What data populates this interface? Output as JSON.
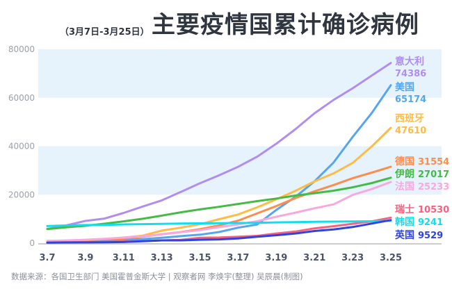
{
  "chart_data": {
    "type": "line",
    "title": "主要疫情国累计确诊病例",
    "subtitle": "（3月7日-3月25日）",
    "source": "数据来源：各国卫生部门 美国霍普金斯大学  |  观察者网 李焕宇(整理)  吴辰晨(制图)",
    "xlabel": "",
    "ylabel": "",
    "ylim": [
      0,
      80000
    ],
    "yticks": [
      "0",
      "20000",
      "40000",
      "60000",
      "80000"
    ],
    "yticks_values": [
      0,
      20000,
      40000,
      60000,
      80000
    ],
    "x": [
      "3.7",
      "3.8",
      "3.9",
      "3.10",
      "3.11",
      "3.12",
      "3.13",
      "3.14",
      "3.15",
      "3.16",
      "3.17",
      "3.18",
      "3.19",
      "3.20",
      "3.21",
      "3.22",
      "3.23",
      "3.24",
      "3.25"
    ],
    "xticks": [
      "3.7",
      "3.9",
      "3.11",
      "3.13",
      "3.15",
      "3.17",
      "3.19",
      "3.21",
      "3.23",
      "3.25"
    ],
    "series": [
      {
        "name": "意大利",
        "final": "74386",
        "color": "#b08ef0",
        "values": [
          5883,
          7375,
          9172,
          10149,
          12462,
          15113,
          17660,
          21157,
          24747,
          27980,
          31506,
          35713,
          41035,
          47021,
          53578,
          59138,
          63927,
          69176,
          74386
        ]
      },
      {
        "name": "美国",
        "final": "65174",
        "color": "#55a6f0",
        "values": [
          400,
          500,
          600,
          900,
          1300,
          1700,
          2200,
          2900,
          3500,
          4600,
          6400,
          7700,
          13700,
          19100,
          25500,
          33300,
          43800,
          53700,
          65174
        ]
      },
      {
        "name": "西班牙",
        "final": "47610",
        "color": "#ffbb44",
        "values": [
          500,
          670,
          1200,
          1700,
          2300,
          3100,
          5200,
          6400,
          7800,
          9900,
          11800,
          14800,
          18100,
          21600,
          25500,
          28800,
          33100,
          39900,
          47610
        ]
      },
      {
        "name": "德国",
        "final": "31554",
        "color": "#ff8c4a",
        "values": [
          800,
          1000,
          1200,
          1600,
          1900,
          2700,
          3700,
          4600,
          5800,
          7300,
          9300,
          12300,
          15300,
          18600,
          21400,
          24000,
          26800,
          29100,
          31554
        ]
      },
      {
        "name": "伊朗",
        "final": "27017",
        "color": "#44bb44",
        "values": [
          5823,
          6566,
          7161,
          8042,
          9000,
          10075,
          11364,
          12729,
          13938,
          14991,
          16169,
          17361,
          18407,
          19644,
          20610,
          21638,
          23049,
          24811,
          27017
        ]
      },
      {
        "name": "法国",
        "final": "25233",
        "color": "#f8a8dc",
        "values": [
          950,
          1130,
          1400,
          1780,
          2280,
          2880,
          3660,
          4500,
          5400,
          6600,
          7700,
          9100,
          10900,
          12600,
          14400,
          16000,
          19900,
          22300,
          25233
        ]
      },
      {
        "name": "瑞士",
        "final": "10530",
        "color": "#f86080",
        "values": [
          270,
          370,
          370,
          490,
          650,
          860,
          1140,
          1360,
          2200,
          2330,
          2650,
          3000,
          4000,
          4800,
          6100,
          7000,
          8000,
          9000,
          10530
        ]
      },
      {
        "name": "韩国",
        "final": "9241",
        "color": "#11ddee",
        "values": [
          7041,
          7314,
          7478,
          7513,
          7755,
          7869,
          7979,
          8086,
          8162,
          8236,
          8320,
          8413,
          8565,
          8652,
          8799,
          8897,
          8961,
          9037,
          9241
        ]
      },
      {
        "name": "英国",
        "final": "9529",
        "color": "#2e44e0",
        "values": [
          206,
          273,
          321,
          382,
          456,
          798,
          1140,
          1140,
          1391,
          1543,
          1950,
          2626,
          3269,
          3983,
          5018,
          5683,
          6650,
          8077,
          9529
        ]
      }
    ],
    "grid": false,
    "legend": "right-end labels"
  }
}
